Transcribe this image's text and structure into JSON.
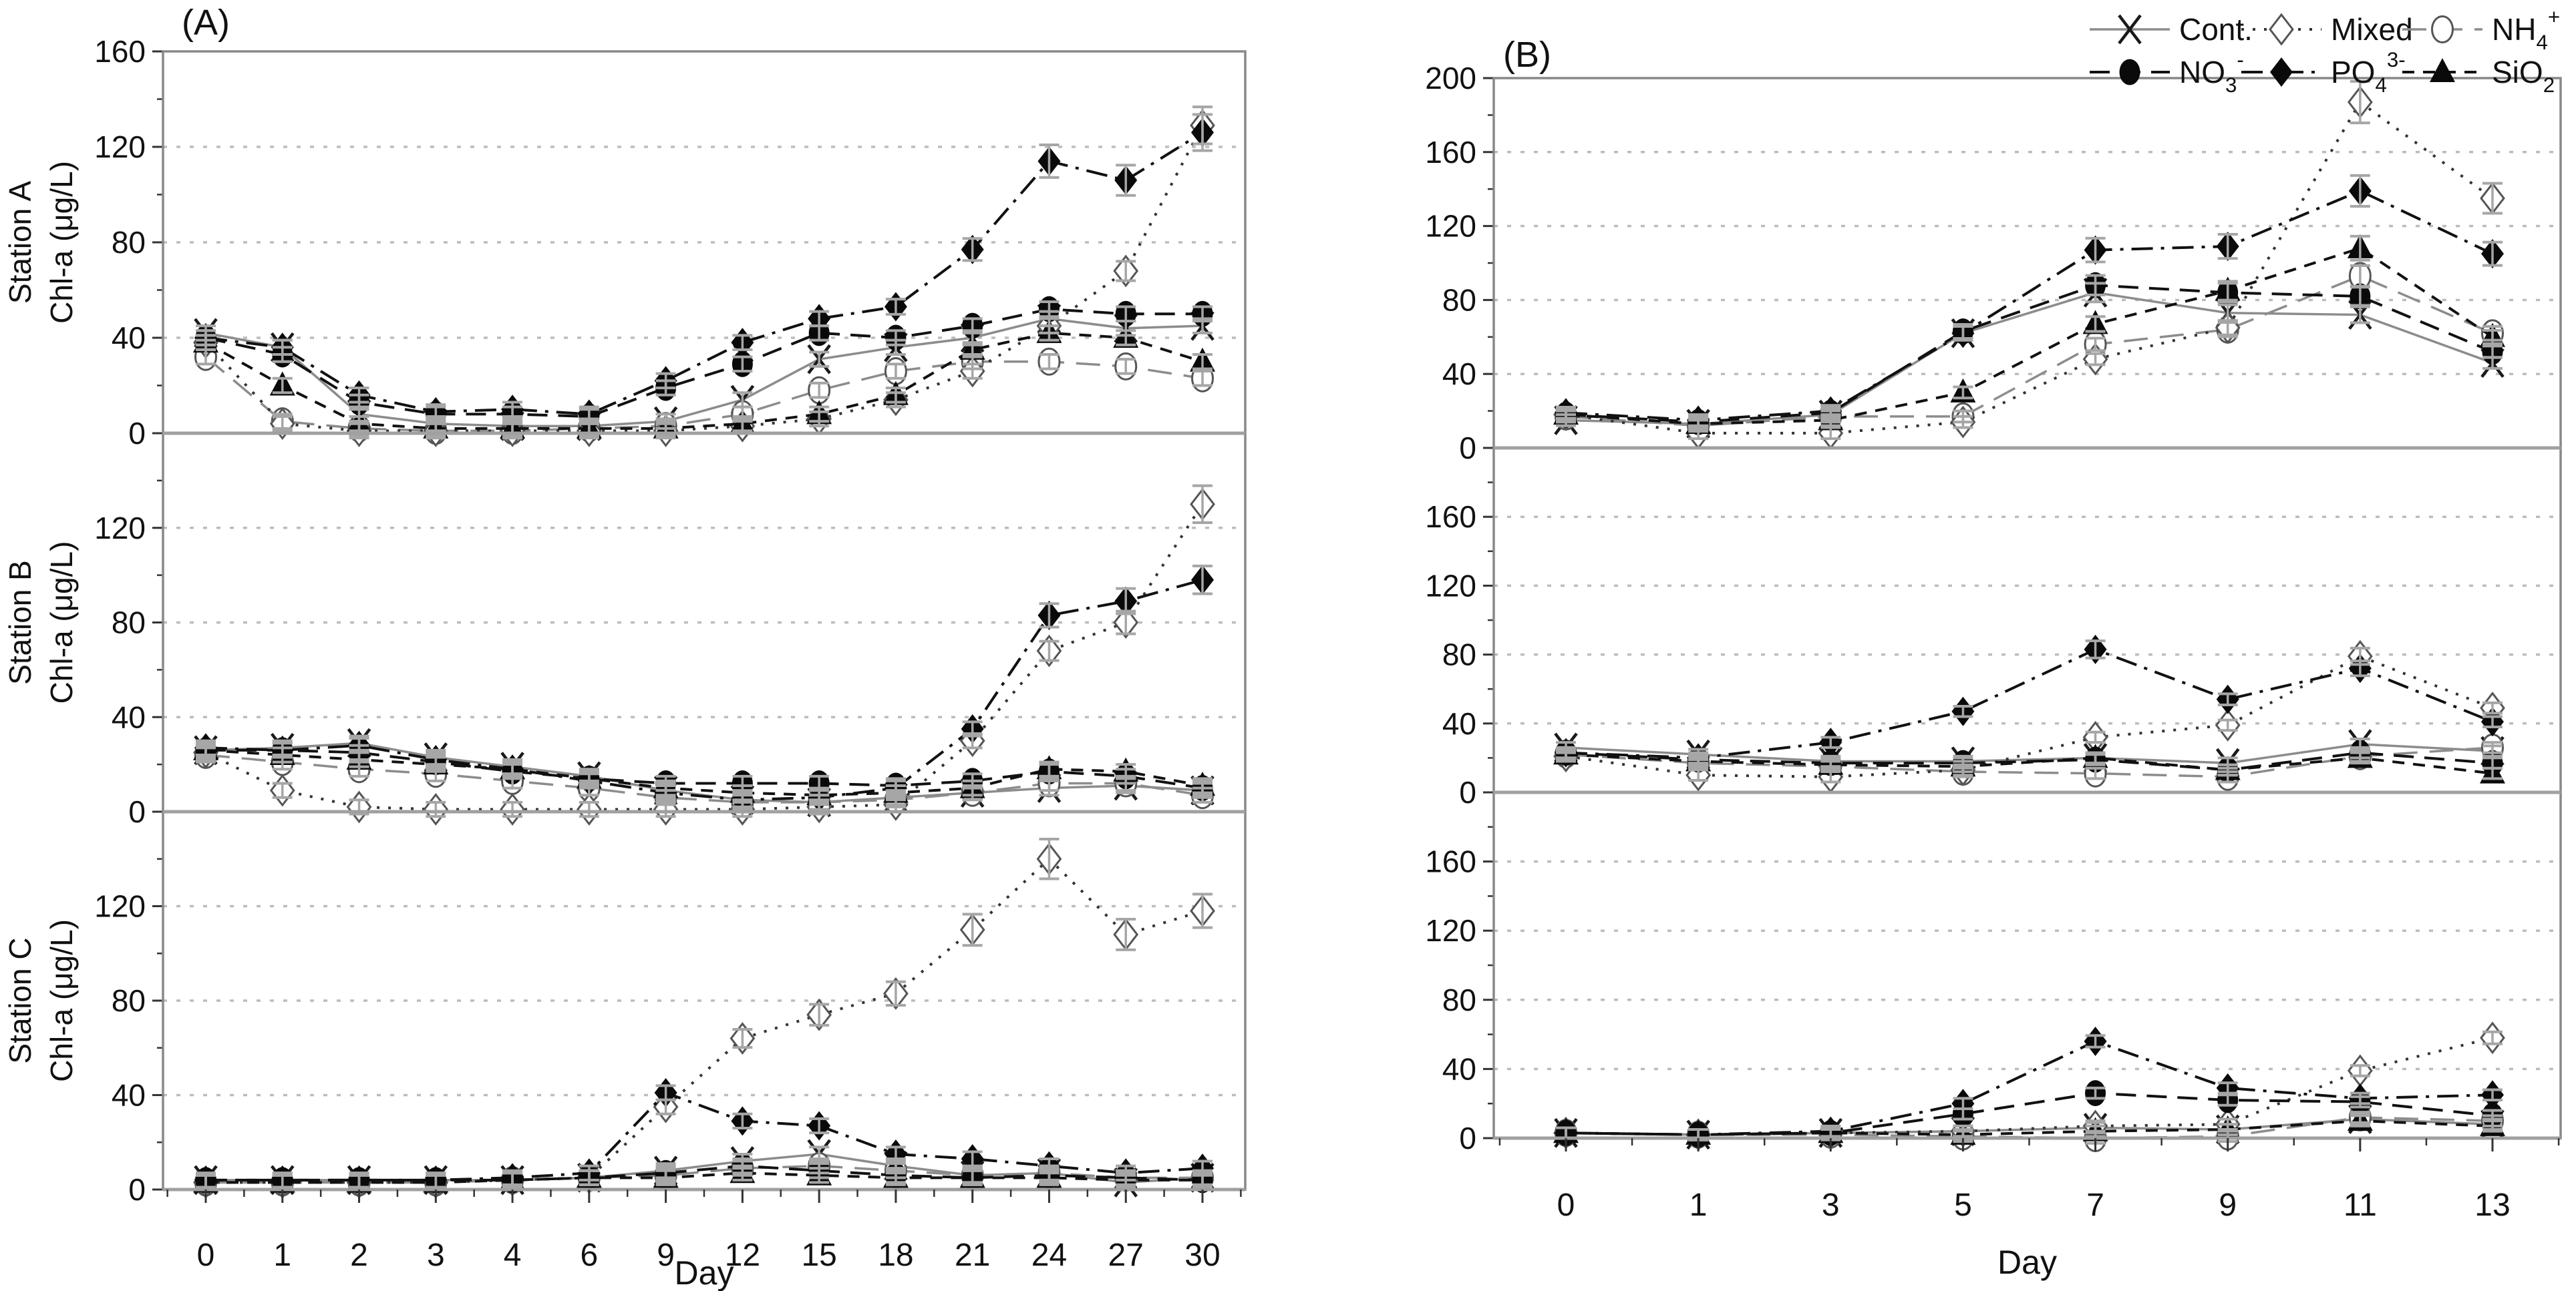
{
  "figure": {
    "panel_a_title": "(A)",
    "panel_b_title": "(B)",
    "x_axis_label": "Day",
    "y_axis_unit_label": "Chl-a (μg/L)"
  },
  "chart_data": {
    "type": "line",
    "title": "",
    "ylabel": "Chl-a (μg/L)",
    "xlabel": "Day",
    "grid": "horizontal-dashed",
    "legend_position": "top-right",
    "error_bars": {
      "min": 3,
      "pct": 0.06,
      "cap_halfwidth": 15
    },
    "series_meta": [
      {
        "key": "cont",
        "marker": "x",
        "line_style": "solid",
        "color": "#8c8c8c",
        "marker_color": "#1a1a1a",
        "label_parts": [
          {
            "t": "Cont."
          }
        ]
      },
      {
        "key": "mixed",
        "marker": "diamond-open",
        "line_style": "dot",
        "color": "#333333",
        "marker_color": "#555555",
        "label_parts": [
          {
            "t": "Mixed"
          }
        ]
      },
      {
        "key": "nh4",
        "marker": "circle-open",
        "line_style": "longdash",
        "color": "#8c8c8c",
        "marker_color": "#555555",
        "label_parts": [
          {
            "t": "NH"
          },
          {
            "t": "4",
            "s": "sub"
          },
          {
            "t": "+",
            "s": "sup"
          }
        ]
      },
      {
        "key": "no3",
        "marker": "circle",
        "line_style": "dash",
        "color": "#111111",
        "marker_color": "#0a0a0a",
        "label_parts": [
          {
            "t": "NO"
          },
          {
            "t": "3",
            "s": "sub"
          },
          {
            "t": "-",
            "s": "sup"
          }
        ]
      },
      {
        "key": "po4",
        "marker": "diamond",
        "line_style": "dashdot",
        "color": "#111111",
        "marker_color": "#0a0a0a",
        "label_parts": [
          {
            "t": "PO"
          },
          {
            "t": "4",
            "s": "sub"
          },
          {
            "t": "3-",
            "s": "sup"
          }
        ]
      },
      {
        "key": "sio2",
        "marker": "triangle",
        "line_style": "dash2",
        "color": "#111111",
        "marker_color": "#0a0a0a",
        "label_parts": [
          {
            "t": "SiO"
          },
          {
            "t": "2",
            "s": "sub"
          }
        ]
      }
    ],
    "legend": {
      "rows": [
        [
          "cont",
          "mixed",
          "nh4"
        ],
        [
          "no3",
          "po4",
          "sio2"
        ]
      ]
    },
    "panels": [
      {
        "id": "A",
        "title": "(A)",
        "xlabel": "Day",
        "x_labels": [
          "0",
          "1",
          "2",
          "3",
          "4",
          "6",
          "9",
          "12",
          "15",
          "18",
          "21",
          "24",
          "27",
          "30"
        ],
        "subplots": [
          {
            "station": "Station A",
            "ylabel": [
              "Station A",
              "Chl-a (μg/L)"
            ],
            "ymax": 160,
            "yticks": [
              0,
              40,
              80,
              120,
              160
            ],
            "series": {
              "cont": [
                42,
                36,
                8,
                4,
                3,
                3,
                5,
                14,
                31,
                36,
                40,
                48,
                44,
                45
              ],
              "mixed": [
                38,
                4,
                1,
                1,
                1,
                1,
                1,
                3,
                6,
                14,
                26,
                45,
                68,
                129
              ],
              "nh4": [
                32,
                5,
                2,
                1,
                1,
                2,
                3,
                8,
                18,
                26,
                30,
                30,
                28,
                23
              ],
              "no3": [
                40,
                33,
                13,
                8,
                8,
                7,
                19,
                29,
                42,
                40,
                45,
                52,
                50,
                50
              ],
              "po4": [
                40,
                36,
                16,
                9,
                10,
                8,
                22,
                38,
                48,
                53,
                77,
                114,
                106,
                126
              ],
              "sio2": [
                38,
                20,
                4,
                2,
                2,
                2,
                2,
                4,
                8,
                16,
                35,
                42,
                40,
                30
              ]
            }
          },
          {
            "station": "Station B",
            "ylabel": [
              "Station B",
              "Chl-a (μg/L)"
            ],
            "ymax": 160,
            "yticks": [
              0,
              40,
              80,
              120
            ],
            "series": {
              "cont": [
                26,
                27,
                29,
                23,
                19,
                15,
                9,
                5,
                4,
                6,
                8,
                10,
                11,
                9
              ],
              "mixed": [
                25,
                9,
                2,
                1,
                1,
                1,
                1,
                1,
                2,
                3,
                30,
                68,
                80,
                130
              ],
              "nh4": [
                24,
                21,
                18,
                16,
                13,
                10,
                6,
                4,
                4,
                5,
                8,
                12,
                12,
                7
              ],
              "no3": [
                26,
                26,
                25,
                21,
                17,
                14,
                12,
                12,
                12,
                11,
                13,
                17,
                15,
                10
              ],
              "po4": [
                27,
                26,
                28,
                22,
                18,
                13,
                8,
                5,
                6,
                10,
                35,
                83,
                89,
                98
              ],
              "sio2": [
                26,
                24,
                22,
                20,
                18,
                14,
                10,
                8,
                7,
                8,
                10,
                18,
                17,
                11
              ]
            }
          },
          {
            "station": "Station C",
            "ylabel": [
              "Station C",
              "Chl-a (μg/L)"
            ],
            "ymax": 160,
            "yticks": [
              0,
              40,
              80,
              120
            ],
            "series": {
              "cont": [
                4,
                4,
                4,
                4,
                4,
                5,
                8,
                12,
                15,
                10,
                6,
                7,
                3,
                5
              ],
              "mixed": [
                3,
                3,
                3,
                3,
                4,
                5,
                35,
                64,
                74,
                83,
                110,
                140,
                108,
                118
              ],
              "nh4": [
                3,
                3,
                3,
                3,
                4,
                5,
                6,
                9,
                10,
                8,
                6,
                7,
                5,
                5
              ],
              "no3": [
                4,
                4,
                4,
                4,
                4,
                5,
                7,
                10,
                8,
                6,
                5,
                6,
                5,
                4
              ],
              "po4": [
                4,
                4,
                4,
                4,
                5,
                7,
                41,
                29,
                27,
                15,
                13,
                10,
                7,
                9
              ],
              "sio2": [
                3,
                3,
                3,
                3,
                4,
                5,
                5,
                7,
                6,
                5,
                5,
                5,
                4,
                4
              ]
            }
          }
        ]
      },
      {
        "id": "B",
        "title": "(B)",
        "xlabel": "Day",
        "x_labels": [
          "0",
          "1",
          "3",
          "5",
          "7",
          "9",
          "11",
          "13"
        ],
        "subplots": [
          {
            "station": "",
            "ylabel": null,
            "ymax": 200,
            "yticks": [
              0,
              40,
              80,
              120,
              160,
              200
            ],
            "series": {
              "cont": [
                15,
                13,
                18,
                62,
                84,
                73,
                72,
                46
              ],
              "mixed": [
                18,
                8,
                8,
                14,
                48,
                65,
                187,
                135
              ],
              "nh4": [
                17,
                12,
                17,
                17,
                56,
                64,
                93,
                62
              ],
              "no3": [
                18,
                14,
                19,
                63,
                88,
                84,
                82,
                52
              ],
              "po4": [
                19,
                15,
                20,
                62,
                107,
                109,
                139,
                105
              ],
              "sio2": [
                18,
                13,
                15,
                30,
                67,
                85,
                108,
                60
              ]
            }
          },
          {
            "station": "",
            "ylabel": null,
            "ymax": 200,
            "yticks": [
              0,
              40,
              80,
              120,
              160
            ],
            "series": {
              "cont": [
                26,
                22,
                18,
                18,
                20,
                17,
                28,
                24
              ],
              "mixed": [
                21,
                10,
                9,
                13,
                32,
                39,
                79,
                49
              ],
              "nh4": [
                22,
                17,
                15,
                12,
                11,
                9,
                21,
                26
              ],
              "no3": [
                23,
                19,
                17,
                17,
                19,
                13,
                23,
                17
              ],
              "po4": [
                23,
                20,
                29,
                47,
                83,
                54,
                72,
                41
              ],
              "sio2": [
                22,
                18,
                16,
                15,
                20,
                13,
                20,
                11
              ]
            }
          },
          {
            "station": "",
            "ylabel": null,
            "ymax": 200,
            "yticks": [
              0,
              40,
              80,
              120,
              160
            ],
            "series": {
              "cont": [
                3,
                2,
                3,
                4,
                6,
                5,
                11,
                8
              ],
              "mixed": [
                3,
                2,
                3,
                4,
                7,
                8,
                39,
                58
              ],
              "nh4": [
                3,
                2,
                2,
                1,
                0,
                1,
                12,
                10
              ],
              "no3": [
                3,
                2,
                3,
                14,
                26,
                22,
                21,
                13
              ],
              "po4": [
                3,
                2,
                4,
                20,
                56,
                29,
                23,
                25
              ],
              "sio2": [
                3,
                2,
                3,
                2,
                4,
                5,
                10,
                7
              ]
            }
          }
        ]
      }
    ]
  }
}
